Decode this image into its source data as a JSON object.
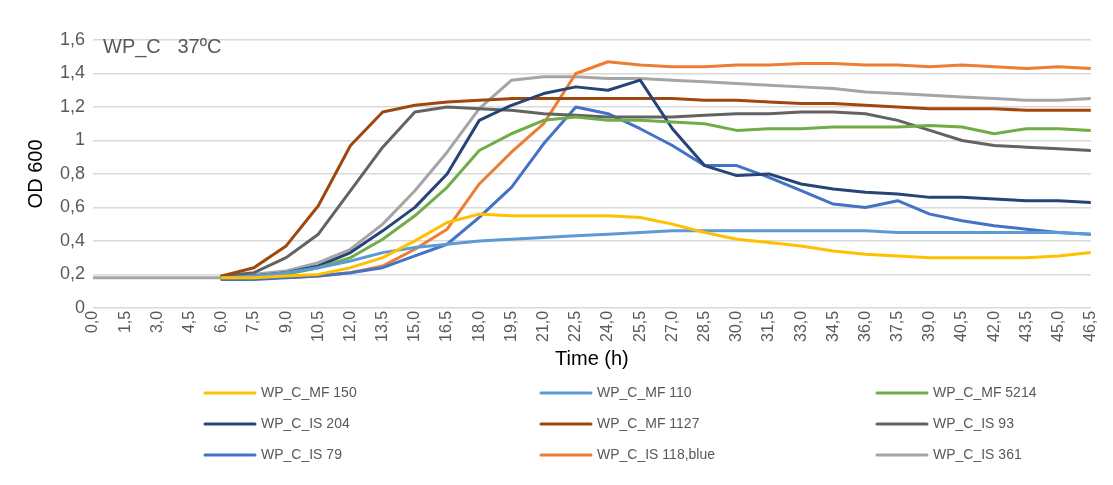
{
  "chart_data": {
    "type": "line",
    "title": "WP_C   37ºC",
    "xlabel": "Time (h)",
    "ylabel": "OD 600",
    "x": [
      0,
      1.5,
      3,
      4.5,
      6,
      7.5,
      9,
      10.5,
      12,
      13.5,
      15,
      16.5,
      18,
      19.5,
      21,
      22.5,
      24,
      25.5,
      27,
      28.5,
      30,
      31.5,
      33,
      34.5,
      36,
      37.5,
      39,
      40.5,
      42,
      43.5,
      45,
      46.5
    ],
    "xlim": [
      0,
      46.5
    ],
    "xticks": [
      {
        "value": 0,
        "label": "0,0"
      },
      {
        "value": 1.5,
        "label": "1,5"
      },
      {
        "value": 3,
        "label": "3,0"
      },
      {
        "value": 4.5,
        "label": "4,5"
      },
      {
        "value": 6,
        "label": "6,0"
      },
      {
        "value": 7.5,
        "label": "7,5"
      },
      {
        "value": 9,
        "label": "9,0"
      },
      {
        "value": 10.5,
        "label": "10,5"
      },
      {
        "value": 12,
        "label": "12,0"
      },
      {
        "value": 13.5,
        "label": "13,5"
      },
      {
        "value": 15,
        "label": "15,0"
      },
      {
        "value": 16.5,
        "label": "16,5"
      },
      {
        "value": 18,
        "label": "18,0"
      },
      {
        "value": 19.5,
        "label": "19,5"
      },
      {
        "value": 21,
        "label": "21,0"
      },
      {
        "value": 22.5,
        "label": "22,5"
      },
      {
        "value": 24,
        "label": "24,0"
      },
      {
        "value": 25.5,
        "label": "25,5"
      },
      {
        "value": 27,
        "label": "27,0"
      },
      {
        "value": 28.5,
        "label": "28,5"
      },
      {
        "value": 30,
        "label": "30,0"
      },
      {
        "value": 31.5,
        "label": "31,5"
      },
      {
        "value": 33,
        "label": "33,0"
      },
      {
        "value": 34.5,
        "label": "34,5"
      },
      {
        "value": 36,
        "label": "36,0"
      },
      {
        "value": 37.5,
        "label": "37,5"
      },
      {
        "value": 39,
        "label": "39,0"
      },
      {
        "value": 40.5,
        "label": "40,5"
      },
      {
        "value": 42,
        "label": "42,0"
      },
      {
        "value": 43.5,
        "label": "43,5"
      },
      {
        "value": 45,
        "label": "45,0"
      },
      {
        "value": 46.5,
        "label": "46,5"
      }
    ],
    "ylim": [
      0,
      1.6
    ],
    "yticks": [
      0,
      {
        "value": 0.2,
        "label": "0,2"
      },
      {
        "value": 0.4,
        "label": "0,4"
      },
      {
        "value": 0.6,
        "label": "0,6"
      },
      {
        "value": 0.8,
        "label": "0,8"
      },
      1,
      {
        "value": 1.2,
        "label": "1,2"
      },
      {
        "value": 1.4,
        "label": "1,4"
      },
      {
        "value": 1.6,
        "label": "1,6"
      }
    ],
    "grid": "y",
    "legend": "bottom",
    "marker": "none",
    "line_style": "solid",
    "series": [
      {
        "name": "WP_C_MF 150",
        "color": "#ffc000",
        "values": [
          null,
          null,
          null,
          null,
          0.18,
          0.18,
          0.19,
          0.2,
          0.24,
          0.3,
          0.4,
          0.51,
          0.56,
          0.55,
          0.55,
          0.55,
          0.55,
          0.54,
          0.5,
          0.45,
          0.41,
          0.39,
          0.37,
          0.34,
          0.32,
          0.31,
          0.3,
          0.3,
          0.3,
          0.3,
          0.31,
          0.33
        ]
      },
      {
        "name": "WP_C_MF 110",
        "color": "#5b9bd5",
        "values": [
          null,
          null,
          null,
          null,
          0.18,
          0.19,
          0.21,
          0.24,
          0.28,
          0.33,
          0.36,
          0.38,
          0.4,
          0.41,
          0.42,
          0.43,
          0.44,
          0.45,
          0.46,
          0.46,
          0.46,
          0.46,
          0.46,
          0.46,
          0.46,
          0.45,
          0.45,
          0.45,
          0.45,
          0.45,
          0.45,
          0.44
        ]
      },
      {
        "name": "WP_C_MF 5214",
        "color": "#70ad47",
        "values": [
          null,
          null,
          null,
          null,
          0.18,
          0.18,
          0.2,
          0.24,
          0.3,
          0.41,
          0.55,
          0.72,
          0.94,
          1.04,
          1.12,
          1.14,
          1.12,
          1.12,
          1.11,
          1.1,
          1.06,
          1.07,
          1.07,
          1.08,
          1.08,
          1.08,
          1.09,
          1.08,
          1.04,
          1.07,
          1.07,
          1.06
        ]
      },
      {
        "name": "WP_C_IS 204",
        "color": "#264478",
        "values": [
          null,
          null,
          null,
          null,
          0.18,
          0.19,
          0.21,
          0.25,
          0.33,
          0.46,
          0.6,
          0.8,
          1.12,
          1.21,
          1.28,
          1.32,
          1.3,
          1.36,
          1.07,
          0.85,
          0.79,
          0.8,
          0.74,
          0.71,
          0.69,
          0.68,
          0.66,
          0.66,
          0.65,
          0.64,
          0.64,
          0.63
        ]
      },
      {
        "name": "WP_C_MF 1127",
        "color": "#9e480e",
        "values": [
          null,
          null,
          null,
          null,
          0.19,
          0.24,
          0.37,
          0.61,
          0.97,
          1.17,
          1.21,
          1.23,
          1.24,
          1.25,
          1.25,
          1.25,
          1.25,
          1.25,
          1.25,
          1.24,
          1.24,
          1.23,
          1.22,
          1.22,
          1.21,
          1.2,
          1.19,
          1.19,
          1.19,
          1.18,
          1.18,
          1.18
        ]
      },
      {
        "name": "WP_C_IS 93",
        "color": "#636363",
        "values": [
          null,
          null,
          null,
          null,
          0.19,
          0.21,
          0.3,
          0.44,
          0.7,
          0.96,
          1.17,
          1.2,
          1.19,
          1.18,
          1.16,
          1.15,
          1.14,
          1.14,
          1.14,
          1.15,
          1.16,
          1.16,
          1.17,
          1.17,
          1.16,
          1.12,
          1.06,
          1.0,
          0.97,
          0.96,
          0.95,
          0.94
        ]
      },
      {
        "name": "WP_C_IS 79",
        "color": "#4472c4",
        "values": [
          null,
          null,
          null,
          null,
          0.17,
          0.17,
          0.18,
          0.19,
          0.21,
          0.24,
          0.31,
          0.38,
          0.54,
          0.72,
          0.98,
          1.2,
          1.16,
          1.07,
          0.97,
          0.85,
          0.85,
          0.78,
          0.7,
          0.62,
          0.6,
          0.64,
          0.56,
          0.52,
          0.49,
          0.47,
          0.45,
          0.44
        ]
      },
      {
        "name": "WP_C_IS 118,blue",
        "color": "#ed7d31",
        "values": [
          null,
          null,
          null,
          null,
          null,
          null,
          0.18,
          0.19,
          0.21,
          0.25,
          0.35,
          0.47,
          0.74,
          0.93,
          1.1,
          1.4,
          1.47,
          1.45,
          1.44,
          1.44,
          1.45,
          1.45,
          1.46,
          1.46,
          1.45,
          1.45,
          1.44,
          1.45,
          1.44,
          1.43,
          1.44,
          1.43
        ]
      },
      {
        "name": "WP_C_IS 361",
        "color": "#a5a5a5",
        "values": [
          0.18,
          0.18,
          0.18,
          0.18,
          0.18,
          0.2,
          0.22,
          0.27,
          0.35,
          0.5,
          0.7,
          0.93,
          1.19,
          1.36,
          1.38,
          1.38,
          1.37,
          1.37,
          1.36,
          1.35,
          1.34,
          1.33,
          1.32,
          1.31,
          1.29,
          1.28,
          1.27,
          1.26,
          1.25,
          1.24,
          1.24,
          1.25
        ]
      }
    ]
  }
}
